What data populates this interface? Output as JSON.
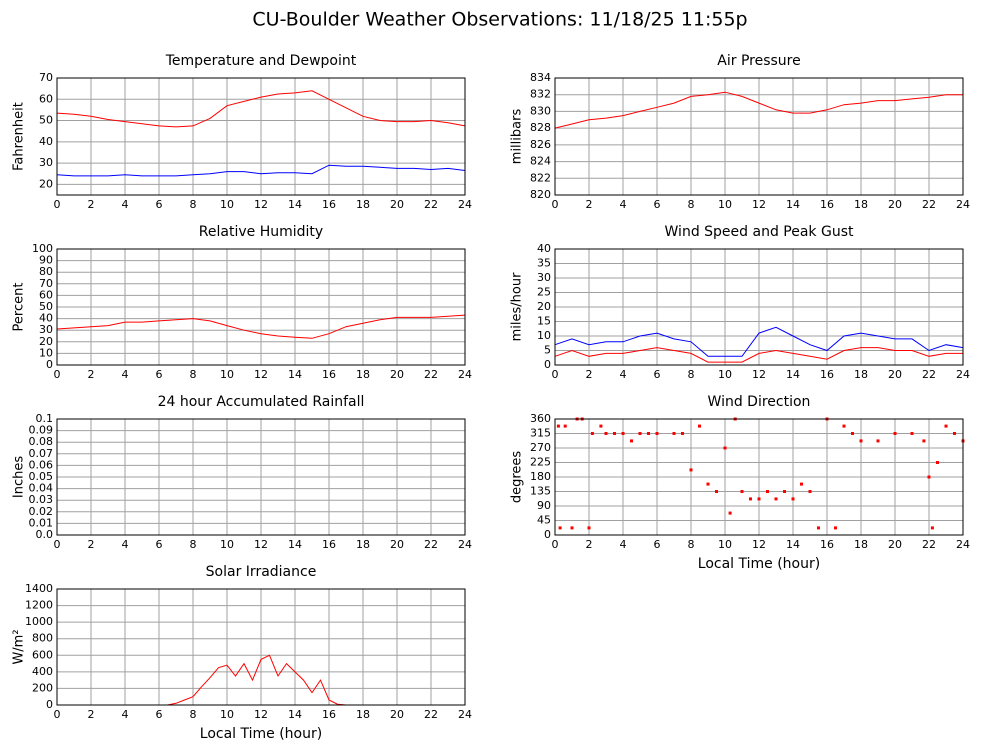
{
  "title": "CU-Boulder Weather Observations: 11/18/25 11:55p",
  "chart_data": [
    {
      "type": "line",
      "title": "Temperature and Dewpoint",
      "ylabel": "Fahrenheit",
      "x": [
        0,
        1,
        2,
        3,
        4,
        5,
        6,
        7,
        8,
        9,
        10,
        11,
        12,
        13,
        14,
        15,
        16,
        17,
        18,
        19,
        20,
        21,
        22,
        23,
        24
      ],
      "series": [
        {
          "color": "#ff0000",
          "values": [
            53.5,
            53,
            52,
            50.5,
            49.5,
            48.5,
            47.5,
            47,
            47.5,
            51,
            57,
            59,
            61,
            62.5,
            63,
            64,
            60,
            56,
            52,
            50,
            49.5,
            49.5,
            50,
            49,
            47.5
          ]
        },
        {
          "color": "#0000ff",
          "values": [
            24.5,
            24,
            24,
            24,
            24.5,
            24,
            24,
            24,
            24.5,
            25,
            26,
            26,
            25,
            25.5,
            25.5,
            25,
            29,
            28.5,
            28.5,
            28,
            27.5,
            27.5,
            27,
            27.5,
            26.5
          ]
        }
      ],
      "xlim": [
        0,
        24
      ],
      "xticks": [
        0,
        2,
        4,
        6,
        8,
        10,
        12,
        14,
        16,
        18,
        20,
        22,
        24
      ],
      "ylim": [
        15,
        70
      ],
      "yticks": [
        20,
        30,
        40,
        50,
        60,
        70
      ],
      "grid": true
    },
    {
      "type": "line",
      "title": "Air Pressure",
      "ylabel": "millibars",
      "x": [
        0,
        1,
        2,
        3,
        4,
        5,
        6,
        7,
        8,
        9,
        10,
        11,
        12,
        13,
        14,
        15,
        16,
        17,
        18,
        19,
        20,
        21,
        22,
        23,
        24
      ],
      "series": [
        {
          "color": "#ff0000",
          "values": [
            828,
            828.5,
            829,
            829.2,
            829.5,
            830,
            830.5,
            831,
            831.8,
            832,
            832.3,
            831.8,
            831,
            830.2,
            829.8,
            829.8,
            830.2,
            830.8,
            831,
            831.3,
            831.3,
            831.5,
            831.7,
            832,
            832
          ]
        }
      ],
      "xlim": [
        0,
        24
      ],
      "xticks": [
        0,
        2,
        4,
        6,
        8,
        10,
        12,
        14,
        16,
        18,
        20,
        22,
        24
      ],
      "ylim": [
        820,
        834
      ],
      "yticks": [
        820,
        822,
        824,
        826,
        828,
        830,
        832,
        834
      ],
      "grid": true
    },
    {
      "type": "line",
      "title": "Relative Humidity",
      "ylabel": "Percent",
      "x": [
        0,
        1,
        2,
        3,
        4,
        5,
        6,
        7,
        8,
        9,
        10,
        11,
        12,
        13,
        14,
        15,
        16,
        17,
        18,
        19,
        20,
        21,
        22,
        23,
        24
      ],
      "series": [
        {
          "color": "#ff0000",
          "values": [
            31,
            32,
            33,
            34,
            37,
            37,
            38,
            39,
            40,
            38,
            34,
            30,
            27,
            25,
            24,
            23,
            27,
            33,
            36,
            39,
            41,
            41,
            41,
            42,
            43
          ]
        }
      ],
      "xlim": [
        0,
        24
      ],
      "xticks": [
        0,
        2,
        4,
        6,
        8,
        10,
        12,
        14,
        16,
        18,
        20,
        22,
        24
      ],
      "ylim": [
        0,
        100
      ],
      "yticks": [
        0,
        10,
        20,
        30,
        40,
        50,
        60,
        70,
        80,
        90,
        100
      ],
      "grid": true
    },
    {
      "type": "line",
      "title": "Wind Speed and Peak Gust",
      "ylabel": "miles/hour",
      "x": [
        0,
        1,
        2,
        3,
        4,
        5,
        6,
        7,
        8,
        9,
        10,
        11,
        12,
        13,
        14,
        15,
        16,
        17,
        18,
        19,
        20,
        21,
        22,
        23,
        24
      ],
      "series": [
        {
          "color": "#0000ff",
          "values": [
            7,
            9,
            7,
            8,
            8,
            10,
            11,
            9,
            8,
            3,
            3,
            3,
            11,
            13,
            10,
            7,
            5,
            10,
            11,
            10,
            9,
            9,
            5,
            7,
            6
          ]
        },
        {
          "color": "#ff0000",
          "values": [
            3,
            5,
            3,
            4,
            4,
            5,
            6,
            5,
            4,
            1,
            1,
            1,
            4,
            5,
            4,
            3,
            2,
            5,
            6,
            6,
            5,
            5,
            3,
            4,
            4
          ]
        }
      ],
      "xlim": [
        0,
        24
      ],
      "xticks": [
        0,
        2,
        4,
        6,
        8,
        10,
        12,
        14,
        16,
        18,
        20,
        22,
        24
      ],
      "ylim": [
        0,
        40
      ],
      "yticks": [
        0,
        5,
        10,
        15,
        20,
        25,
        30,
        35,
        40
      ],
      "grid": true
    },
    {
      "type": "line",
      "title": "24 hour Accumulated Rainfall",
      "ylabel": "Inches",
      "x": [
        0,
        24
      ],
      "series": [
        {
          "color": "#ff0000",
          "values": [
            0,
            0
          ]
        }
      ],
      "xlim": [
        0,
        24
      ],
      "xticks": [
        0,
        2,
        4,
        6,
        8,
        10,
        12,
        14,
        16,
        18,
        20,
        22,
        24
      ],
      "ylim": [
        0,
        0.1
      ],
      "yticks": [
        {
          "value": 0,
          "label": "0.0"
        },
        0.01,
        0.02,
        0.03,
        0.04,
        0.05,
        0.06,
        0.07,
        0.08,
        0.09,
        0.1
      ],
      "grid": true
    },
    {
      "type": "scatter",
      "title": "Wind Direction",
      "ylabel": "degrees",
      "xlabel": "Local Time (hour)",
      "x": [
        0.2,
        0.3,
        0.6,
        1,
        1.3,
        1.6,
        2,
        2.2,
        2.7,
        3,
        3.5,
        4,
        4.5,
        5,
        5.5,
        6,
        7,
        7.5,
        8,
        8.5,
        9,
        9.5,
        10,
        10.3,
        10.6,
        11,
        11.5,
        12,
        12.5,
        13,
        13.5,
        14,
        14.5,
        15,
        15.5,
        16,
        16.5,
        17,
        17.5,
        18,
        19,
        20,
        21,
        21.7,
        22,
        22.2,
        22.5,
        23,
        23.5,
        24
      ],
      "series": [
        {
          "color": "#ff0000",
          "values": [
            338,
            22,
            338,
            22,
            360,
            360,
            22,
            315,
            338,
            315,
            315,
            315,
            292,
            315,
            315,
            315,
            315,
            315,
            202,
            338,
            158,
            135,
            270,
            68,
            360,
            135,
            112,
            112,
            135,
            112,
            135,
            112,
            158,
            135,
            22,
            360,
            22,
            338,
            315,
            292,
            292,
            315,
            315,
            292,
            180,
            22,
            225,
            338,
            315,
            292
          ]
        }
      ],
      "xlim": [
        0,
        24
      ],
      "xticks": [
        0,
        2,
        4,
        6,
        8,
        10,
        12,
        14,
        16,
        18,
        20,
        22,
        24
      ],
      "ylim": [
        0,
        360
      ],
      "yticks": [
        0,
        45,
        90,
        135,
        180,
        225,
        270,
        315,
        360
      ],
      "grid": true
    },
    {
      "type": "line",
      "title": "Solar Irradiance",
      "ylabel": "W/m²",
      "xlabel": "Local Time (hour)",
      "x": [
        0,
        6.5,
        7,
        7.5,
        8,
        8.5,
        9,
        9.5,
        10,
        10.5,
        11,
        11.5,
        12,
        12.5,
        13,
        13.5,
        14,
        14.5,
        15,
        15.5,
        16,
        16.5,
        17,
        24
      ],
      "series": [
        {
          "color": "#ff0000",
          "values": [
            0,
            0,
            20,
            60,
            100,
            220,
            330,
            450,
            480,
            350,
            500,
            300,
            550,
            600,
            350,
            500,
            400,
            300,
            150,
            300,
            60,
            10,
            0,
            0
          ]
        }
      ],
      "xlim": [
        0,
        24
      ],
      "xticks": [
        0,
        2,
        4,
        6,
        8,
        10,
        12,
        14,
        16,
        18,
        20,
        22,
        24
      ],
      "ylim": [
        0,
        1400
      ],
      "yticks": [
        0,
        200,
        400,
        600,
        800,
        1000,
        1200,
        1400
      ],
      "grid": true
    }
  ]
}
